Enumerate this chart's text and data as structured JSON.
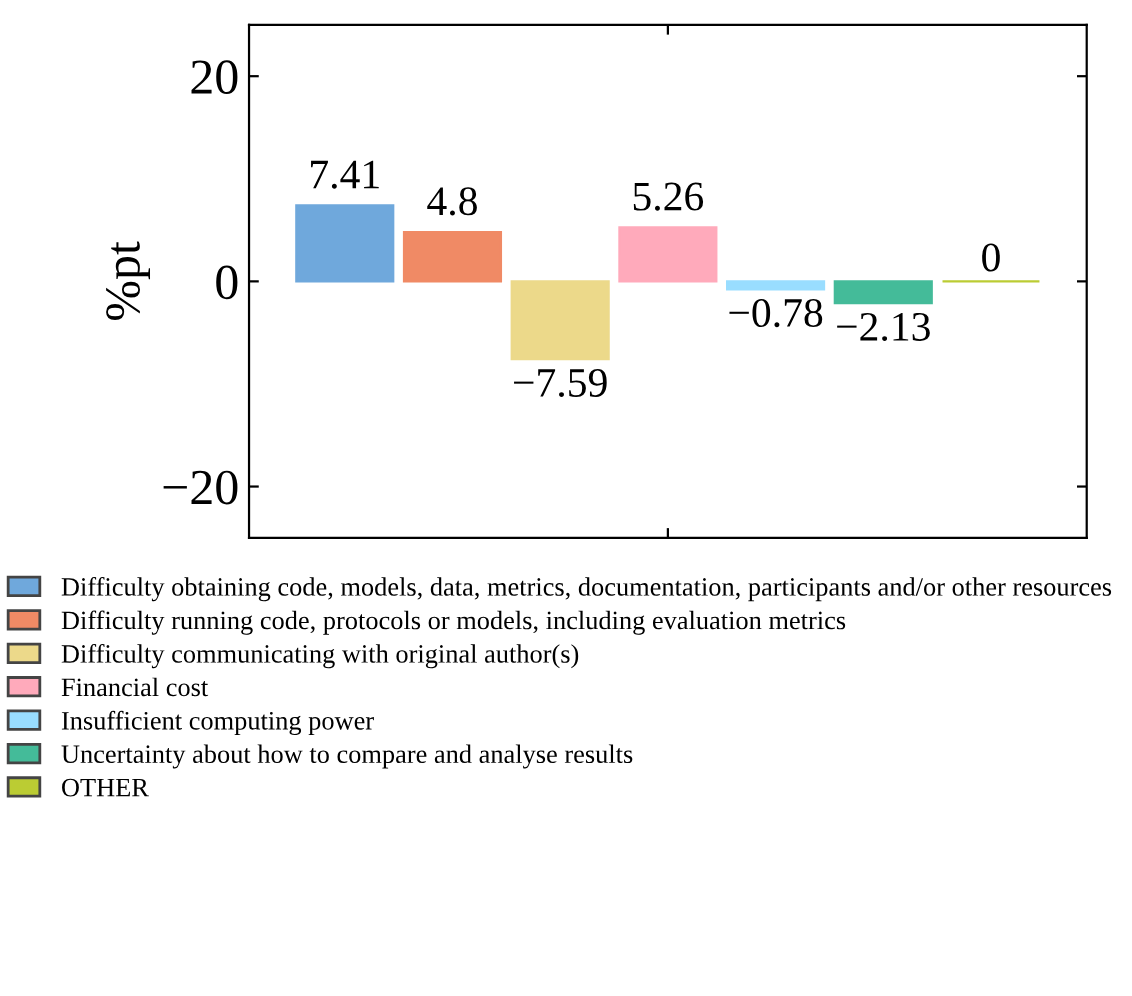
{
  "chart_data": {
    "type": "bar",
    "categories": [
      null
    ],
    "ylabel": "%pt",
    "ylim": [
      -25,
      25
    ],
    "yticks": [
      {
        "value": -20,
        "label": "−20"
      },
      0,
      20
    ],
    "data_labels": true,
    "grid": false,
    "legend": "bottom",
    "series": [
      {
        "name": "Difficulty obtaining code, models, data, metrics, documentation, participants and/or other resources",
        "color": "#6fa8dc",
        "values": [
          7.41
        ]
      },
      {
        "name": "Difficulty running code, protocols or models, including evaluation metrics",
        "color": "#f08a65",
        "values": [
          4.8
        ]
      },
      {
        "name": "Difficulty communicating with original author(s)",
        "color": "#ecd98a",
        "values": [
          -7.59
        ]
      },
      {
        "name": "Financial cost",
        "color": "#ffaabb",
        "values": [
          5.26
        ]
      },
      {
        "name": "Insufficient computing power",
        "color": "#99ddff",
        "values": [
          -0.78
        ]
      },
      {
        "name": "Uncertainty about how to compare and analyse results",
        "color": "#44bb99",
        "values": [
          -2.13
        ]
      },
      {
        "name": "OTHER",
        "color": "#bbcc33",
        "values": [
          0
        ]
      }
    ]
  }
}
